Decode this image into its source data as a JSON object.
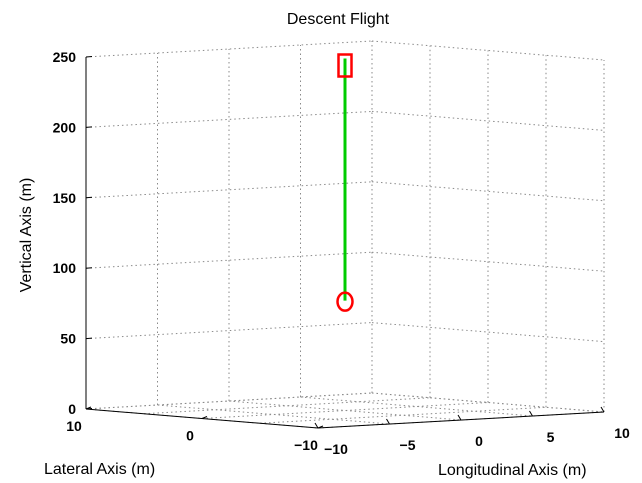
{
  "chart_data": {
    "type": "line",
    "title": "Descent Flight",
    "xlabel": "Lateral Axis (m)",
    "ylabel": "Longitudinal Axis (m)",
    "zlabel": "Vertical Axis (m)",
    "lateral_ticks": [
      "10",
      "0",
      "−10"
    ],
    "longitudinal_ticks": [
      "−10",
      "−5",
      "0",
      "5",
      "10"
    ],
    "vertical_ticks": [
      "0",
      "50",
      "100",
      "150",
      "200",
      "250"
    ],
    "vertical_range": [
      0,
      250
    ],
    "grid": true,
    "series": [
      {
        "color": "#00cc00",
        "points": [
          [
            0,
            0,
            250
          ],
          [
            0,
            0,
            78
          ]
        ]
      }
    ],
    "markers": [
      {
        "shape": "square",
        "color": "#ff0000",
        "point": [
          0,
          0,
          250
        ]
      },
      {
        "shape": "circle",
        "color": "#ff0000",
        "point": [
          0,
          0,
          78
        ]
      }
    ]
  }
}
